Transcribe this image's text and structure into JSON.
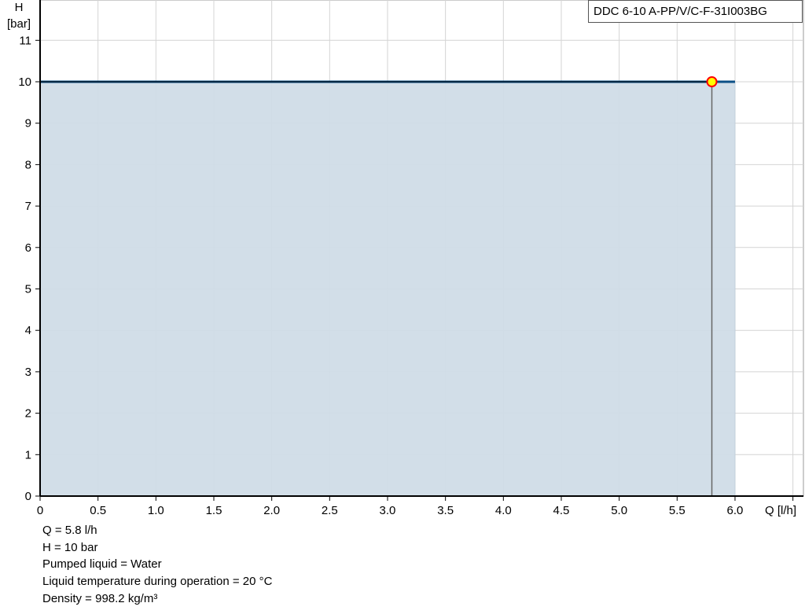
{
  "chart_data": {
    "type": "area",
    "title": "",
    "xlabel": "Q [l/h]",
    "ylabel_line1": "H",
    "ylabel_line2": "[bar]",
    "xlim": [
      0,
      6.75
    ],
    "ylim": [
      0,
      12
    ],
    "grid": true,
    "x_ticks": [
      "0",
      "0.5",
      "1.0",
      "1.5",
      "2.0",
      "2.5",
      "3.0",
      "3.5",
      "4.0",
      "4.5",
      "5.0",
      "5.5",
      "6.0"
    ],
    "y_ticks": [
      "0",
      "1",
      "2",
      "3",
      "4",
      "5",
      "6",
      "7",
      "8",
      "9",
      "10",
      "11"
    ],
    "series": [
      {
        "name": "DDC 6-10 A-PP/V/C-F-31I003BG",
        "x": [
          0,
          6.0
        ],
        "y": [
          10,
          10
        ],
        "color": "#0b4f86",
        "fill": "#d0dce7"
      }
    ],
    "operating_point": {
      "x": 5.8,
      "y": 10,
      "fill": "#ffff00",
      "stroke": "#ff0000"
    },
    "legend": "top-right"
  },
  "info": [
    "Q = 5.8 l/h",
    "H = 10 bar",
    "Pumped liquid = Water",
    "Liquid temperature during operation = 20 °C",
    "Density = 998.2 kg/m³"
  ]
}
